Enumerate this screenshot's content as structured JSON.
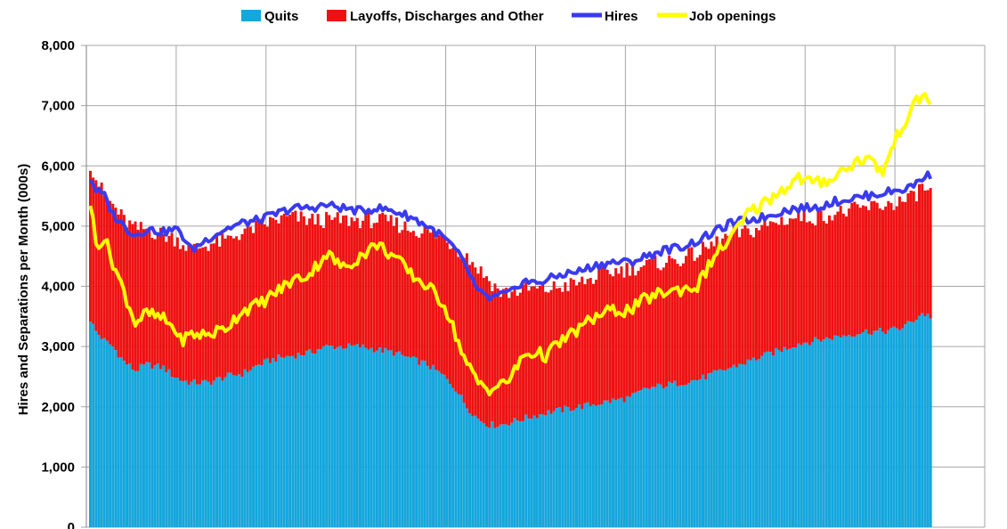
{
  "chart_data": {
    "type": "bar",
    "ylabel": "Hires and Separations per Month (000s)",
    "ylim": [
      0,
      8000
    ],
    "yticks": [
      "0",
      "1,000",
      "2,000",
      "3,000",
      "4,000",
      "5,000",
      "6,000",
      "7,000",
      "8,000"
    ],
    "grid": true,
    "legend_position": "top",
    "colors": {
      "quits": "#14a6dc",
      "layoffs": "#ee1111",
      "hires": "#3a3af0",
      "openings": "#ffff00",
      "grid": "#a6a6a6"
    },
    "monthly_anchors": [
      {
        "i": 0,
        "quits": 3450,
        "total": 6050,
        "hires": 5800,
        "openings": 5400
      },
      {
        "i": 2,
        "quits": 3250,
        "total": 5800,
        "hires": 5600,
        "openings": 4700
      },
      {
        "i": 5,
        "quits": 3100,
        "total": 5500,
        "hires": 5500,
        "openings": 4800
      },
      {
        "i": 8,
        "quits": 3000,
        "total": 5350,
        "hires": 5200,
        "openings": 4400
      },
      {
        "i": 12,
        "quits": 2750,
        "total": 5100,
        "hires": 5000,
        "openings": 3900
      },
      {
        "i": 16,
        "quits": 2600,
        "total": 4950,
        "hires": 4850,
        "openings": 3400
      },
      {
        "i": 20,
        "quits": 2700,
        "total": 4950,
        "hires": 4950,
        "openings": 3550
      },
      {
        "i": 26,
        "quits": 2650,
        "total": 4850,
        "hires": 4900,
        "openings": 3450
      },
      {
        "i": 30,
        "quits": 2500,
        "total": 4800,
        "hires": 4950,
        "openings": 3300
      },
      {
        "i": 32,
        "quits": 2450,
        "total": 4750,
        "hires": 4900,
        "openings": 3100
      },
      {
        "i": 36,
        "quits": 2400,
        "total": 4600,
        "hires": 4600,
        "openings": 3200
      },
      {
        "i": 42,
        "quits": 2400,
        "total": 4700,
        "hires": 4800,
        "openings": 3200
      },
      {
        "i": 48,
        "quits": 2500,
        "total": 4750,
        "hires": 4950,
        "openings": 3300
      },
      {
        "i": 54,
        "quits": 2550,
        "total": 4900,
        "hires": 5050,
        "openings": 3600
      },
      {
        "i": 60,
        "quits": 2700,
        "total": 5000,
        "hires": 5100,
        "openings": 3700
      },
      {
        "i": 66,
        "quits": 2800,
        "total": 5100,
        "hires": 5200,
        "openings": 3900
      },
      {
        "i": 72,
        "quits": 2850,
        "total": 5150,
        "hires": 5300,
        "openings": 4100
      },
      {
        "i": 78,
        "quits": 2900,
        "total": 5100,
        "hires": 5300,
        "openings": 4200
      },
      {
        "i": 84,
        "quits": 3000,
        "total": 5100,
        "hires": 5350,
        "openings": 4550
      },
      {
        "i": 90,
        "quits": 3000,
        "total": 5100,
        "hires": 5300,
        "openings": 4300
      },
      {
        "i": 96,
        "quits": 3000,
        "total": 5100,
        "hires": 5250,
        "openings": 4500
      },
      {
        "i": 102,
        "quits": 2950,
        "total": 5100,
        "hires": 5300,
        "openings": 4700
      },
      {
        "i": 108,
        "quits": 2900,
        "total": 5050,
        "hires": 5250,
        "openings": 4500
      },
      {
        "i": 114,
        "quits": 2800,
        "total": 4950,
        "hires": 5150,
        "openings": 4200
      },
      {
        "i": 120,
        "quits": 2700,
        "total": 4900,
        "hires": 5000,
        "openings": 4000
      },
      {
        "i": 126,
        "quits": 2500,
        "total": 4800,
        "hires": 4800,
        "openings": 3700
      },
      {
        "i": 130,
        "quits": 2300,
        "total": 4650,
        "hires": 4600,
        "openings": 3200
      },
      {
        "i": 134,
        "quits": 2000,
        "total": 4500,
        "hires": 4300,
        "openings": 2700
      },
      {
        "i": 138,
        "quits": 1800,
        "total": 4300,
        "hires": 3900,
        "openings": 2400
      },
      {
        "i": 142,
        "quits": 1700,
        "total": 4100,
        "hires": 3800,
        "openings": 2300
      },
      {
        "i": 146,
        "quits": 1700,
        "total": 3900,
        "hires": 3850,
        "openings": 2350
      },
      {
        "i": 150,
        "quits": 1750,
        "total": 3900,
        "hires": 3900,
        "openings": 2500
      },
      {
        "i": 154,
        "quits": 1800,
        "total": 3950,
        "hires": 4100,
        "openings": 2850
      },
      {
        "i": 158,
        "quits": 1850,
        "total": 3950,
        "hires": 4050,
        "openings": 2900
      },
      {
        "i": 162,
        "quits": 1900,
        "total": 3950,
        "hires": 4100,
        "openings": 2850
      },
      {
        "i": 168,
        "quits": 1950,
        "total": 4000,
        "hires": 4200,
        "openings": 3100
      },
      {
        "i": 174,
        "quits": 2000,
        "total": 4050,
        "hires": 4250,
        "openings": 3300
      },
      {
        "i": 180,
        "quits": 2050,
        "total": 4150,
        "hires": 4350,
        "openings": 3500
      },
      {
        "i": 186,
        "quits": 2100,
        "total": 4250,
        "hires": 4400,
        "openings": 3600
      },
      {
        "i": 192,
        "quits": 2150,
        "total": 4300,
        "hires": 4400,
        "openings": 3600
      },
      {
        "i": 198,
        "quits": 2300,
        "total": 4350,
        "hires": 4500,
        "openings": 3800
      },
      {
        "i": 204,
        "quits": 2350,
        "total": 4400,
        "hires": 4600,
        "openings": 3900
      },
      {
        "i": 210,
        "quits": 2400,
        "total": 4450,
        "hires": 4650,
        "openings": 3950
      },
      {
        "i": 216,
        "quits": 2450,
        "total": 4550,
        "hires": 4750,
        "openings": 4000
      },
      {
        "i": 222,
        "quits": 2550,
        "total": 4700,
        "hires": 4900,
        "openings": 4500
      },
      {
        "i": 228,
        "quits": 2650,
        "total": 4850,
        "hires": 5050,
        "openings": 4800
      },
      {
        "i": 234,
        "quits": 2750,
        "total": 4900,
        "hires": 5100,
        "openings": 5200
      },
      {
        "i": 240,
        "quits": 2850,
        "total": 5000,
        "hires": 5150,
        "openings": 5400
      },
      {
        "i": 246,
        "quits": 2950,
        "total": 5100,
        "hires": 5250,
        "openings": 5600
      },
      {
        "i": 252,
        "quits": 3050,
        "total": 5150,
        "hires": 5300,
        "openings": 5800
      },
      {
        "i": 258,
        "quits": 3100,
        "total": 5150,
        "hires": 5300,
        "openings": 5700
      },
      {
        "i": 264,
        "quits": 3150,
        "total": 5200,
        "hires": 5400,
        "openings": 5800
      },
      {
        "i": 270,
        "quits": 3200,
        "total": 5250,
        "hires": 5450,
        "openings": 6000
      },
      {
        "i": 276,
        "quits": 3250,
        "total": 5300,
        "hires": 5500,
        "openings": 6150
      },
      {
        "i": 282,
        "quits": 3250,
        "total": 5350,
        "hires": 5550,
        "openings": 5900
      },
      {
        "i": 288,
        "quits": 3300,
        "total": 5400,
        "hires": 5600,
        "openings": 6600
      },
      {
        "i": 292,
        "quits": 3400,
        "total": 5450,
        "hires": 5650,
        "openings": 6900
      },
      {
        "i": 296,
        "quits": 3550,
        "total": 5650,
        "hires": 5800,
        "openings": 7200
      },
      {
        "i": 299,
        "quits": 3500,
        "total": 5550,
        "hires": 5850,
        "openings": 7050
      }
    ]
  },
  "legend": {
    "quits": "Quits",
    "layoffs": "Layoffs, Discharges and Other",
    "hires": "Hires",
    "openings": "Job openings"
  }
}
